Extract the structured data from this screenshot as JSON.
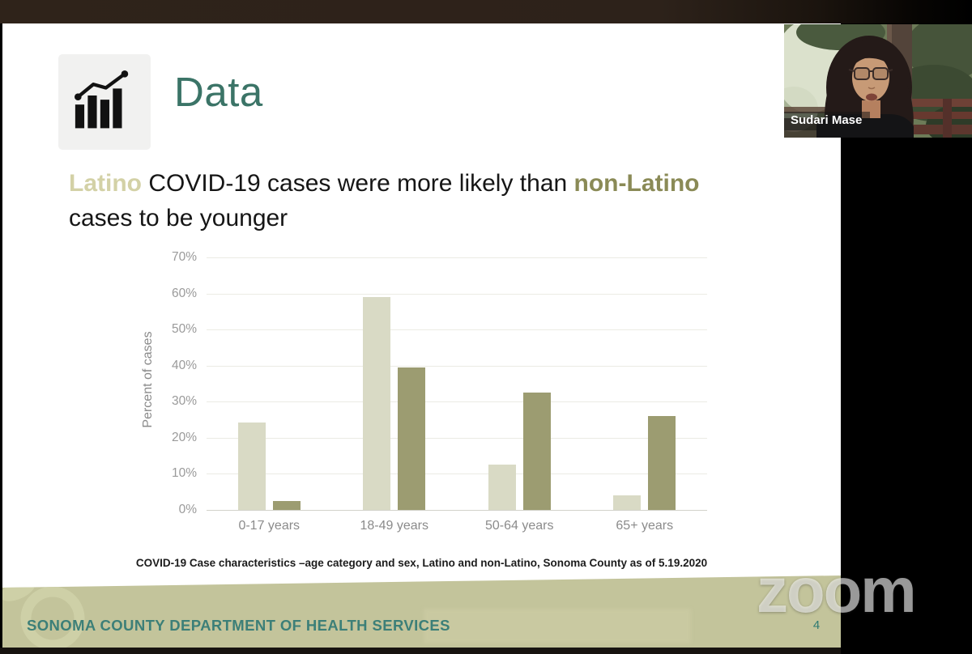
{
  "meeting": {
    "watermark": "zoom",
    "participant": {
      "name": "Sudari Mase"
    }
  },
  "slide": {
    "title": "Data",
    "heading": {
      "highlight1": "Latino",
      "segment1": " COVID-19 cases were more likely than ",
      "highlight2": "non-Latino",
      "line2": "cases to be younger"
    },
    "caption": "COVID-19 Case characteristics –age category and sex, Latino and non-Latino, Sonoma County as of 5.19.2020",
    "footer": {
      "organization": "SONOMA COUNTY DEPARTMENT OF HEALTH SERVICES",
      "page_number": "4"
    }
  },
  "chart_data": {
    "type": "bar",
    "categories": [
      "0-17 years",
      "18-49 years",
      "50-64 years",
      "65+ years"
    ],
    "series": [
      {
        "name": "Latino",
        "color": "#d9dac5",
        "values": [
          24.3,
          59,
          12.5,
          4
        ]
      },
      {
        "name": "non-Latino",
        "color": "#9c9c71",
        "values": [
          2.5,
          39.5,
          32.5,
          26
        ]
      }
    ],
    "title": "",
    "xlabel": "",
    "ylabel": "Percent of cases",
    "ylim": [
      0,
      70
    ],
    "ytick_values": [
      0,
      10,
      20,
      30,
      40,
      50,
      60,
      70
    ],
    "ytick_suffix": "%",
    "grid": true,
    "legend_position": "none"
  },
  "colors": {
    "slide_title": "#3b7467",
    "highlight_latino": "#d3d1a6",
    "highlight_non_latino": "#8a8a56",
    "bar_latino": "#d9dac5",
    "bar_non_latino": "#9c9c71",
    "footer_band": "#c3c49b",
    "footer_text": "#3c7f78",
    "axis_text": "#9a9a9a"
  }
}
